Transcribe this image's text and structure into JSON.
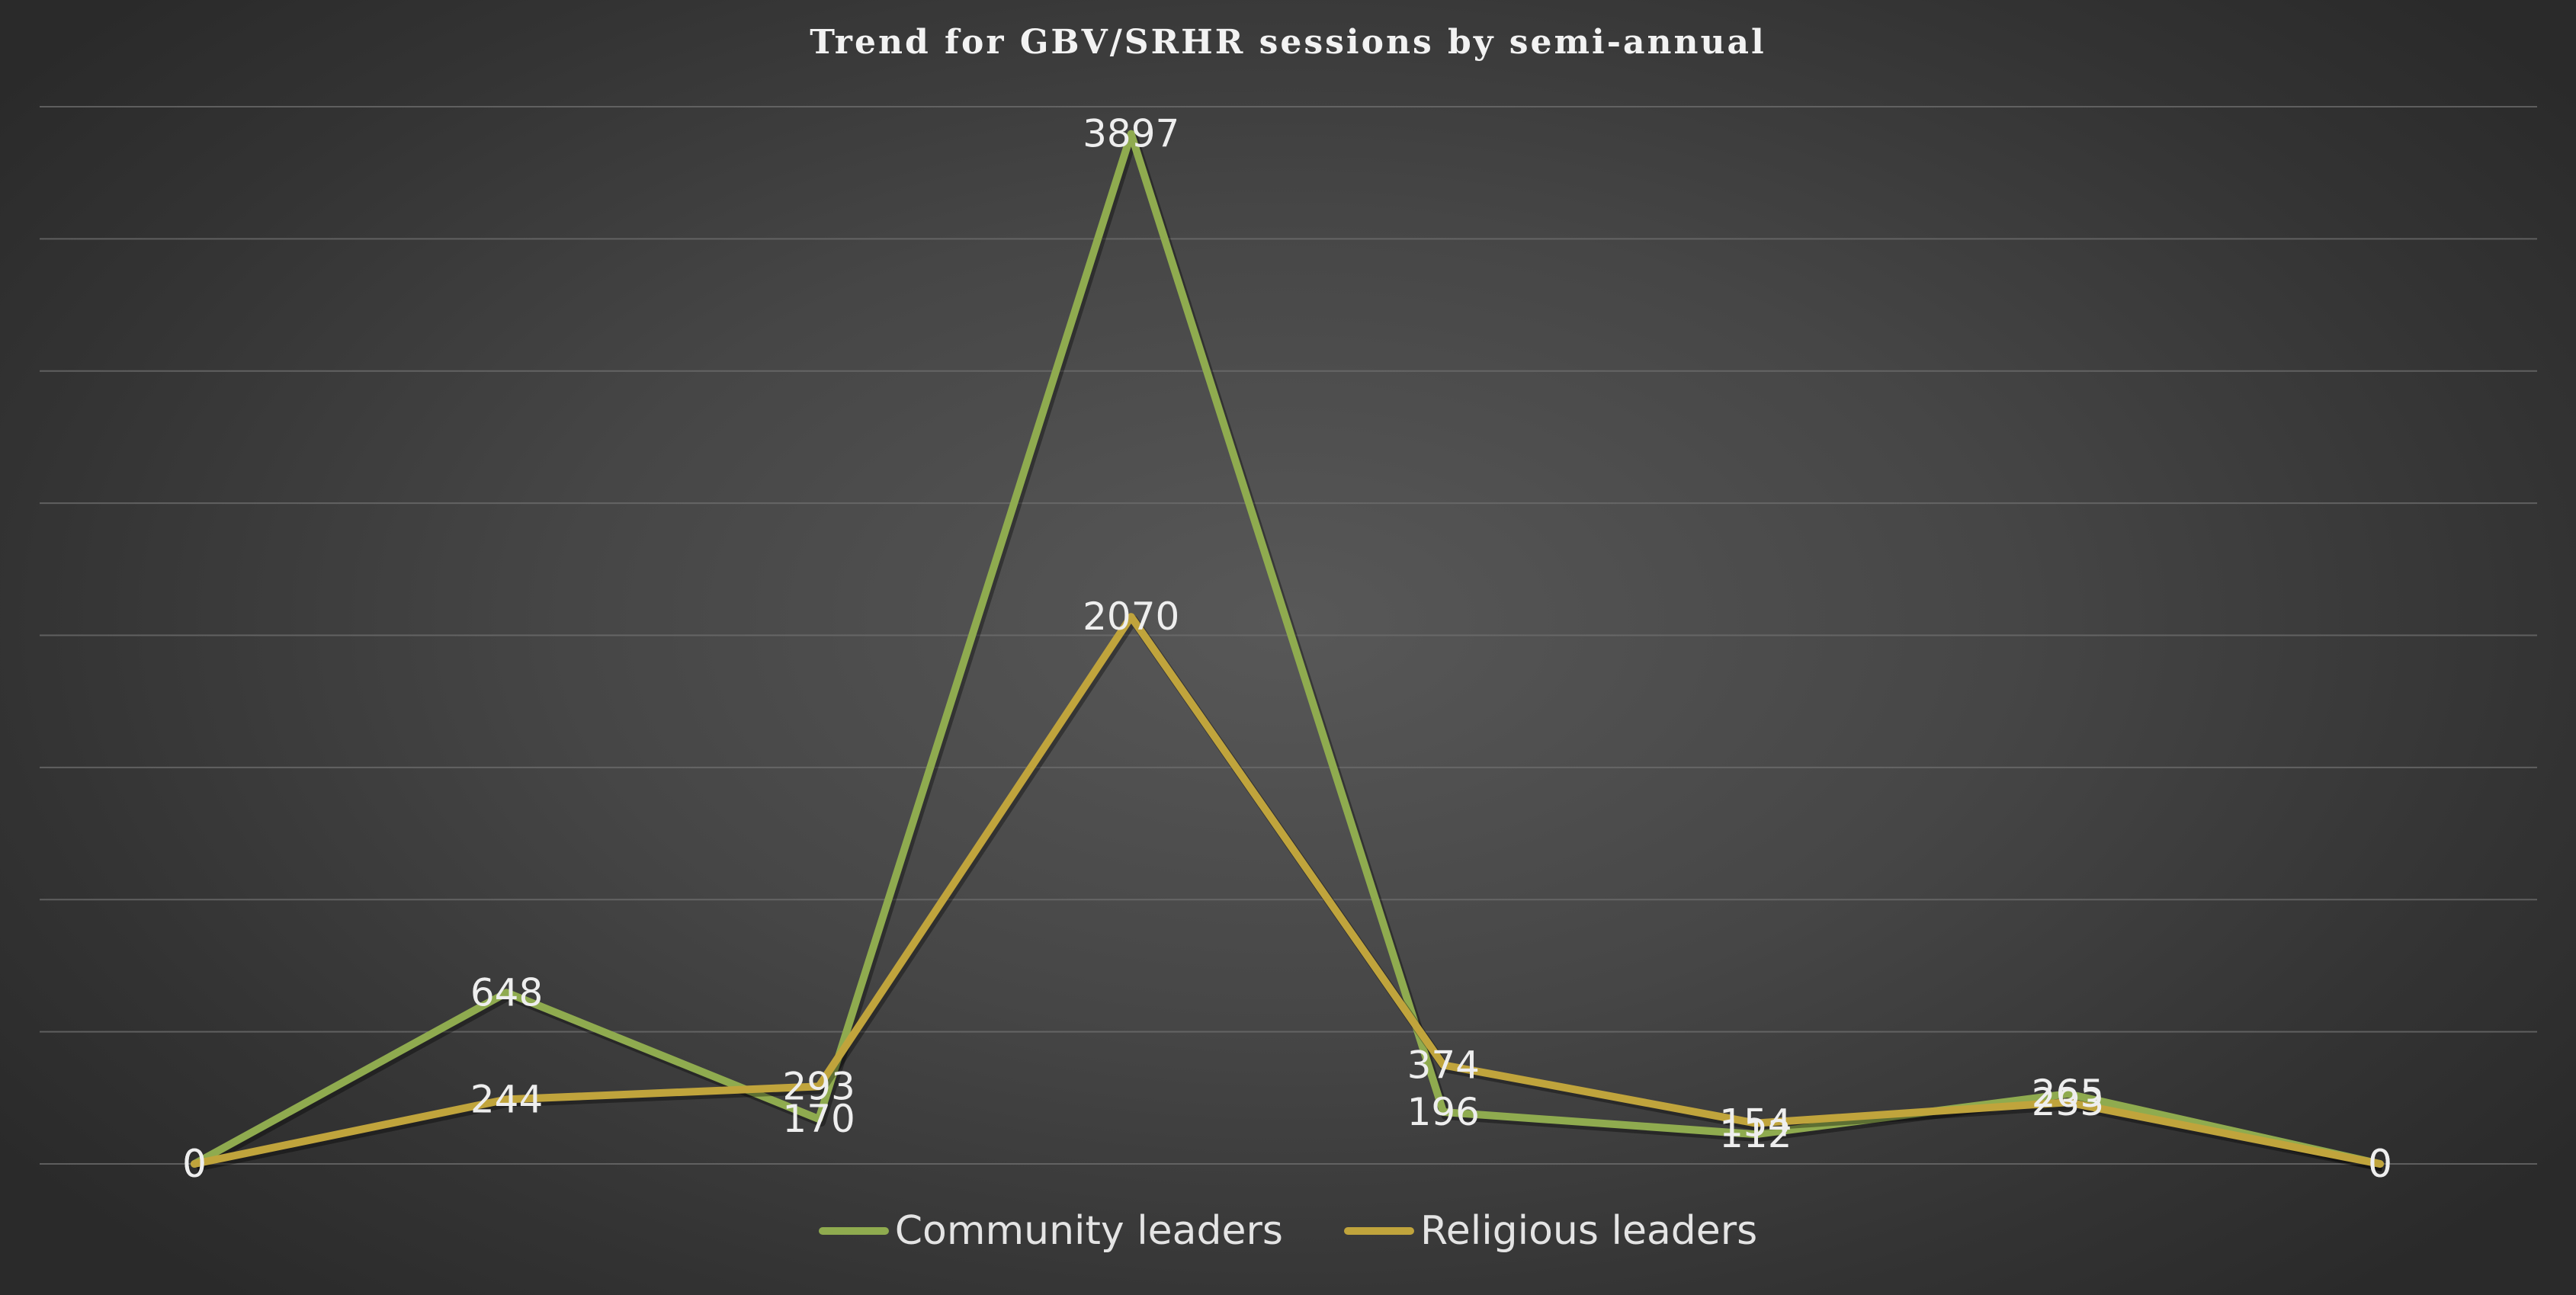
{
  "chart_data": {
    "type": "line",
    "title": "Trend for GBV/SRHR sessions by semi-annual",
    "xlabel": "",
    "ylabel": "",
    "x": [
      1,
      2,
      3,
      4,
      5,
      6,
      7,
      8
    ],
    "ylim": [
      0,
      4000
    ],
    "grid": true,
    "legend_position": "bottom",
    "series": [
      {
        "name": "Community leaders",
        "color": "#8fab4f",
        "values": [
          0,
          648,
          170,
          3897,
          196,
          112,
          265,
          0
        ]
      },
      {
        "name": "Religious leaders",
        "color": "#c0a43c",
        "values": [
          0,
          244,
          293,
          2070,
          374,
          154,
          233,
          0
        ]
      }
    ]
  }
}
